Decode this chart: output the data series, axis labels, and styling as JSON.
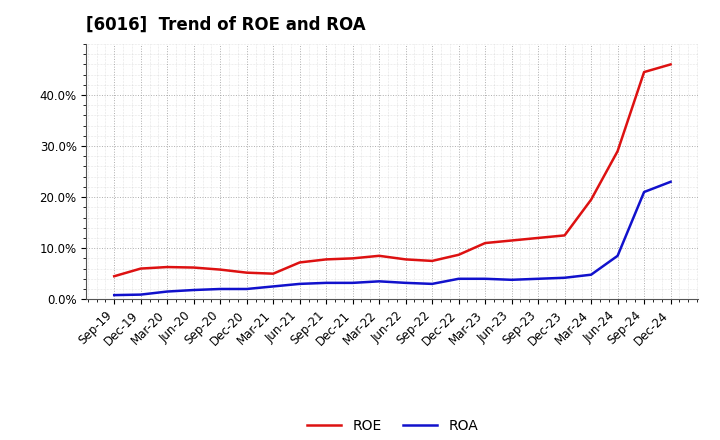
{
  "title": "[6016]  Trend of ROE and ROA",
  "title_fontsize": 12,
  "title_fontweight": "bold",
  "x_labels": [
    "Sep-19",
    "Dec-19",
    "Mar-20",
    "Jun-20",
    "Sep-20",
    "Dec-20",
    "Mar-21",
    "Jun-21",
    "Sep-21",
    "Dec-21",
    "Mar-22",
    "Jun-22",
    "Sep-22",
    "Dec-22",
    "Mar-23",
    "Jun-23",
    "Sep-23",
    "Dec-23",
    "Mar-24",
    "Jun-24",
    "Sep-24",
    "Dec-24"
  ],
  "roe": [
    4.5,
    6.0,
    6.3,
    6.2,
    5.8,
    5.2,
    5.0,
    7.2,
    7.8,
    8.0,
    8.5,
    7.8,
    7.5,
    8.7,
    11.0,
    11.5,
    12.0,
    12.5,
    19.5,
    29.0,
    44.5,
    46.0
  ],
  "roa": [
    0.8,
    0.9,
    1.5,
    1.8,
    2.0,
    2.0,
    2.5,
    3.0,
    3.2,
    3.2,
    3.5,
    3.2,
    3.0,
    4.0,
    4.0,
    3.8,
    4.0,
    4.2,
    4.8,
    8.5,
    21.0,
    23.0
  ],
  "roe_color": "#dd1111",
  "roa_color": "#1111cc",
  "ylim": [
    0.0,
    50.0
  ],
  "yticks": [
    0.0,
    10.0,
    20.0,
    30.0,
    40.0
  ],
  "grid_color": "#999999",
  "bg_color": "#ffffff",
  "plot_bg_color": "#ffffff",
  "legend_roe": "ROE",
  "legend_roa": "ROA",
  "line_width": 1.8,
  "tick_fontsize": 8.5
}
